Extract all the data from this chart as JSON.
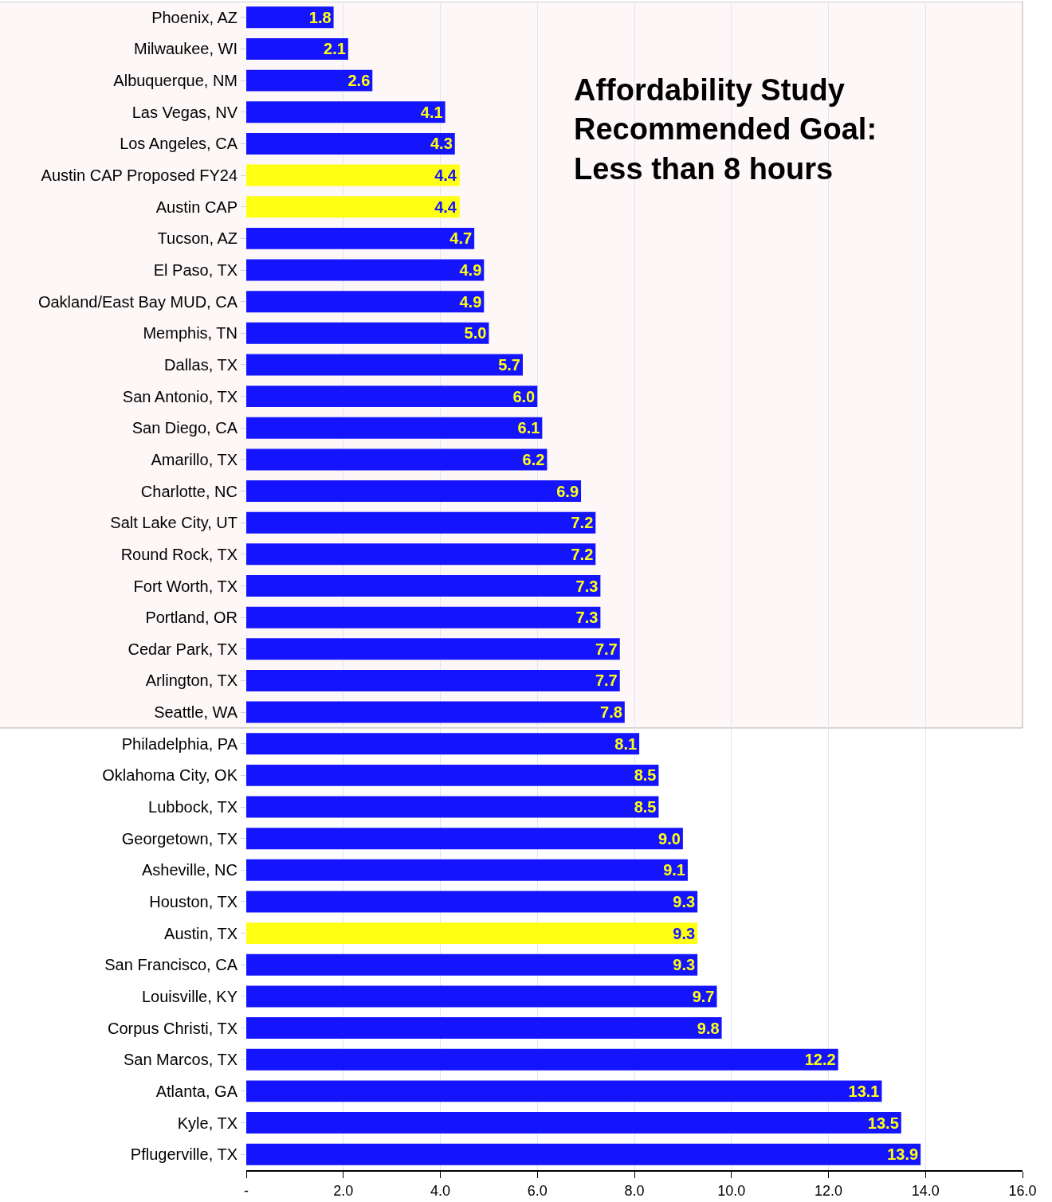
{
  "chart_data": {
    "type": "bar",
    "orientation": "horizontal",
    "categories": [
      "Phoenix, AZ",
      "Milwaukee, WI",
      "Albuquerque, NM",
      "Las Vegas, NV",
      "Los Angeles, CA",
      "Austin CAP Proposed FY24",
      "Austin CAP",
      "Tucson, AZ",
      "El Paso, TX",
      "Oakland/East Bay MUD, CA",
      "Memphis, TN",
      "Dallas, TX",
      "San Antonio, TX",
      "San Diego, CA",
      "Amarillo, TX",
      "Charlotte, NC",
      "Salt Lake City, UT",
      "Round Rock, TX",
      "Fort Worth, TX",
      "Portland, OR",
      "Cedar Park, TX",
      "Arlington, TX",
      "Seattle, WA",
      "Philadelphia, PA",
      "Oklahoma City, OK",
      "Lubbock, TX",
      "Georgetown, TX",
      "Asheville, NC",
      "Houston, TX",
      "Austin, TX",
      "San Francisco, CA",
      "Louisville, KY",
      "Corpus Christi, TX",
      "San Marcos, TX",
      "Atlanta, GA",
      "Kyle, TX",
      "Pflugerville, TX"
    ],
    "values": [
      1.8,
      2.1,
      2.6,
      4.1,
      4.3,
      4.4,
      4.4,
      4.7,
      4.9,
      4.9,
      5.0,
      5.7,
      6.0,
      6.1,
      6.2,
      6.9,
      7.2,
      7.2,
      7.3,
      7.3,
      7.7,
      7.7,
      7.8,
      8.1,
      8.5,
      8.5,
      9.0,
      9.1,
      9.3,
      9.3,
      9.3,
      9.7,
      9.8,
      12.2,
      13.1,
      13.5,
      13.9
    ],
    "value_labels": [
      "1.8",
      "2.1",
      "2.6",
      "4.1",
      "4.3",
      "4.4",
      "4.4",
      "4.7",
      "4.9",
      "4.9",
      "5.0",
      "5.7",
      "6.0",
      "6.1",
      "6.2",
      "6.9",
      "7.2",
      "7.2",
      "7.3",
      "7.3",
      "7.7",
      "7.7",
      "7.8",
      "8.1",
      "8.5",
      "8.5",
      "9.0",
      "9.1",
      "9.3",
      "9.3",
      "9.3",
      "9.7",
      "9.8",
      "12.2",
      "13.1",
      "13.5",
      "13.9"
    ],
    "colors": [
      "#1414ff",
      "#1414ff",
      "#1414ff",
      "#1414ff",
      "#1414ff",
      "#ffff14",
      "#ffff14",
      "#1414ff",
      "#1414ff",
      "#1414ff",
      "#1414ff",
      "#1414ff",
      "#1414ff",
      "#1414ff",
      "#1414ff",
      "#1414ff",
      "#1414ff",
      "#1414ff",
      "#1414ff",
      "#1414ff",
      "#1414ff",
      "#1414ff",
      "#1414ff",
      "#1414ff",
      "#1414ff",
      "#1414ff",
      "#1414ff",
      "#1414ff",
      "#1414ff",
      "#ffff14",
      "#1414ff",
      "#1414ff",
      "#1414ff",
      "#1414ff",
      "#1414ff",
      "#1414ff",
      "#1414ff"
    ],
    "xlim": [
      0,
      16
    ],
    "xticks": [
      {
        "value": 0,
        "label": "-"
      },
      {
        "value": 2,
        "label": "2.0"
      },
      {
        "value": 4,
        "label": "4.0"
      },
      {
        "value": 6,
        "label": "6.0"
      },
      {
        "value": 8,
        "label": "8.0"
      },
      {
        "value": 10,
        "label": "10.0"
      },
      {
        "value": 12,
        "label": "12.0"
      },
      {
        "value": 14,
        "label": "14.0"
      },
      {
        "value": 16,
        "label": "16.0"
      }
    ],
    "grid": "x",
    "bands": [
      {
        "axis": "y",
        "from": "Phoenix, AZ",
        "to": "Seattle, WA",
        "color": "#fdf7f7"
      }
    ],
    "annotations": [
      "Affordability Study\nRecommended Goal:\nLess than 8 hours"
    ]
  }
}
